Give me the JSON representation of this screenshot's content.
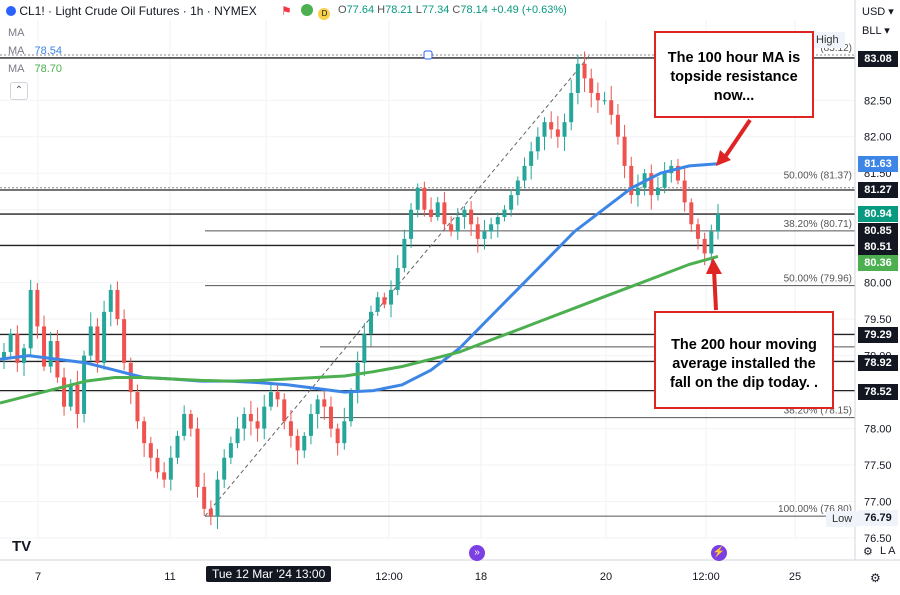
{
  "header": {
    "title": "CL1! · Light Crude Oil Futures · 1h · NYMEX",
    "o_label": "O",
    "o": "77.64",
    "h_label": " H",
    "h": "78.21",
    "l_label": " L",
    "l": "77.34",
    "c_label": " C",
    "c": "78.14",
    "change": "+0.49 (+0.63%)"
  },
  "legend": {
    "ma1_name": "MA",
    "ma2_name": "MA",
    "ma2_value": "78.54",
    "ma3_name": "MA",
    "ma3_value": "78.70"
  },
  "axis": {
    "currency": "USD",
    "unit": "BLL",
    "tags": [
      "83.08",
      "81.63",
      "81.27",
      "80.94",
      "80.85",
      "80.51",
      "80.36",
      "79.29",
      "78.92",
      "78.52",
      "76.79"
    ],
    "high_label": "High",
    "low_label": "Low",
    "crosshair_time": "Tue 12 Mar '24   13:00",
    "log_label": "L  A"
  },
  "annotations": [
    "The 100 hour MA is topside resistance now...",
    "The 200 hour moving average installed the fall on the dip today. ."
  ],
  "chart_data": {
    "type": "candlestick",
    "title": "CL1! · Light Crude Oil Futures · 1h · NYMEX",
    "x_ticks": [
      "7",
      "11",
      "Tue 12 Mar '24",
      "13:00",
      "12:00",
      "18",
      "20",
      "12:00",
      "25"
    ],
    "y_ticks": [
      "83.08",
      "82.50",
      "82.00",
      "81.50",
      "81.00",
      "80.50",
      "80.00",
      "79.50",
      "79.00",
      "78.50",
      "78.00",
      "77.50",
      "77.00",
      "76.50"
    ],
    "ylim": [
      76.5,
      83.6
    ],
    "close_path": [
      79.05,
      79.3,
      78.9,
      79.1,
      79.9,
      79.4,
      78.85,
      79.2,
      78.7,
      78.3,
      78.6,
      78.2,
      79.0,
      79.4,
      78.9,
      79.6,
      79.9,
      79.5,
      78.9,
      78.5,
      78.1,
      77.8,
      77.6,
      77.4,
      77.3,
      77.6,
      77.9,
      78.2,
      78.0,
      77.2,
      76.9,
      76.8,
      77.3,
      77.6,
      77.8,
      78.0,
      78.2,
      78.1,
      78.0,
      78.3,
      78.5,
      78.4,
      78.1,
      77.9,
      77.7,
      77.9,
      78.2,
      78.4,
      78.3,
      78.0,
      77.8,
      78.1,
      78.5,
      78.9,
      79.3,
      79.6,
      79.8,
      79.7,
      79.9,
      80.2,
      80.6,
      81.0,
      81.3,
      81.0,
      80.9,
      81.1,
      80.8,
      80.7,
      80.9,
      81.0,
      80.8,
      80.6,
      80.7,
      80.8,
      80.9,
      81.0,
      81.2,
      81.4,
      81.6,
      81.8,
      82.0,
      82.2,
      82.1,
      82.0,
      82.2,
      82.6,
      83.0,
      82.8,
      82.6,
      82.5,
      82.5,
      82.3,
      82.0,
      81.6,
      81.2,
      81.3,
      81.5,
      81.2,
      81.3,
      81.5,
      81.6,
      81.4,
      81.1,
      80.8,
      80.6,
      80.4,
      80.7,
      80.94
    ],
    "series": [
      {
        "name": "MA 78.54",
        "color": "#3d86e6",
        "values": [
          78.95,
          79.0,
          78.95,
          78.9,
          78.8,
          78.7,
          78.68,
          78.65,
          78.65,
          78.63,
          78.6,
          78.55,
          78.5,
          78.52,
          78.6,
          78.8,
          79.1,
          79.5,
          79.9,
          80.3,
          80.7,
          81.0,
          81.3,
          81.5,
          81.6,
          81.63
        ]
      },
      {
        "name": "MA 78.70",
        "color": "#4caf50",
        "values": [
          78.35,
          78.45,
          78.55,
          78.65,
          78.7,
          78.7,
          78.68,
          78.66,
          78.65,
          78.66,
          78.68,
          78.7,
          78.72,
          78.78,
          78.85,
          78.95,
          79.05,
          79.2,
          79.35,
          79.5,
          79.65,
          79.8,
          79.95,
          80.1,
          80.25,
          80.36
        ]
      }
    ],
    "horizontal_levels": [
      83.08,
      81.27,
      80.94,
      80.51,
      79.29,
      78.92,
      78.52
    ],
    "fib_labels": [
      {
        "text": "(83.12)",
        "price": 83.12
      },
      {
        "text": "50.00% (81.37)",
        "price": 81.37
      },
      {
        "text": "38.20% (80.71)",
        "price": 80.71
      },
      {
        "text": "50.00% (79.96)",
        "price": 79.96
      },
      {
        "text": "38.20% (78.15)",
        "price": 78.15
      },
      {
        "text": "100.00% (76.80)",
        "price": 76.8
      }
    ]
  }
}
